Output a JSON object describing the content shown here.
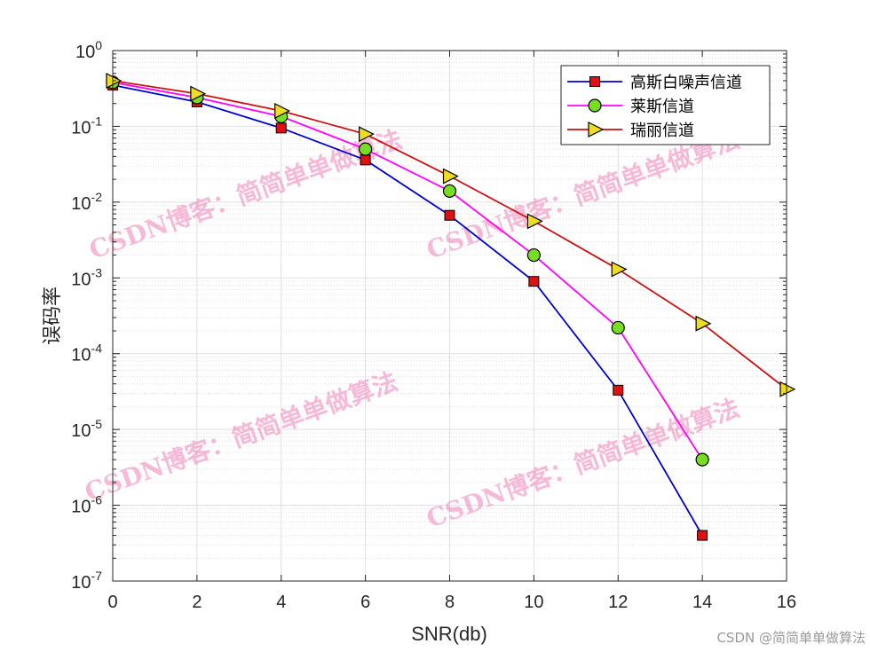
{
  "chart_data": {
    "type": "line",
    "xlabel": "SNR(db)",
    "ylabel": "误码率",
    "x_ticks": [
      0,
      2,
      4,
      6,
      8,
      10,
      12,
      14,
      16
    ],
    "xlim": [
      0,
      16
    ],
    "ylim": [
      1e-07,
      1
    ],
    "yscale": "log",
    "y_tick_exponents": [
      0,
      -1,
      -2,
      -3,
      -4,
      -5,
      -6,
      -7
    ],
    "grid": true,
    "minor_grid": true,
    "legend_position": "top-right",
    "series": [
      {
        "name": "高斯白噪声信道",
        "color": "#0000cc",
        "marker": "square",
        "marker_fill": "#dd1111",
        "x": [
          0,
          2,
          4,
          6,
          8,
          10,
          12,
          14
        ],
        "y": [
          0.35,
          0.21,
          0.095,
          0.036,
          0.0067,
          0.0009,
          3.3e-05,
          4e-07
        ]
      },
      {
        "name": "莱斯信道",
        "color": "#ff00ff",
        "marker": "circle",
        "marker_fill": "#77dd22",
        "x": [
          0,
          2,
          4,
          6,
          8,
          10,
          12,
          14
        ],
        "y": [
          0.38,
          0.24,
          0.135,
          0.05,
          0.014,
          0.002,
          0.00022,
          4e-06
        ]
      },
      {
        "name": "瑞丽信道",
        "color": "#cc1111",
        "marker": "triangle-right",
        "marker_fill": "#eedd22",
        "x": [
          0,
          2,
          4,
          6,
          8,
          10,
          12,
          14,
          16
        ],
        "y": [
          0.4,
          0.27,
          0.16,
          0.079,
          0.022,
          0.0056,
          0.0013,
          0.00025,
          3.4e-05
        ]
      }
    ],
    "watermarks": [
      "CSDN博客：简简单单做算法",
      "CSDN博客：简简单单做算法",
      "CSDN博客：简简单单做算法",
      "CSDN博客：简简单单做算法"
    ]
  },
  "source_note": "CSDN @简简单单做算法",
  "colors": {
    "axis": "#262626",
    "grid": "#dfdfdf",
    "watermark": "#f080b8"
  }
}
